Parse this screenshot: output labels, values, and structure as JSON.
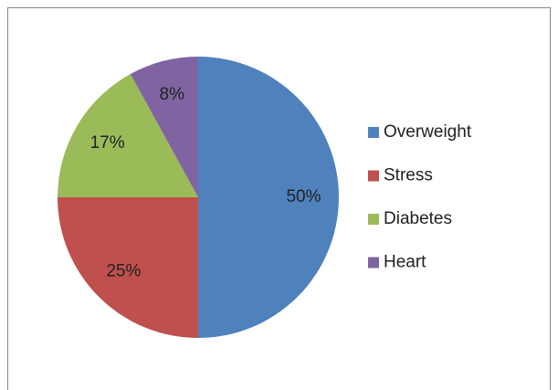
{
  "chart_data": {
    "type": "pie",
    "categories": [
      "Overweight",
      "Stress",
      "Diabetes",
      "Heart"
    ],
    "values": [
      50,
      25,
      17,
      8
    ],
    "value_labels": [
      "50%",
      "25%",
      "17%",
      "8%"
    ],
    "colors": [
      "#4f81bd",
      "#c0504d",
      "#9bbb59",
      "#8064a2"
    ],
    "legend": "right"
  }
}
